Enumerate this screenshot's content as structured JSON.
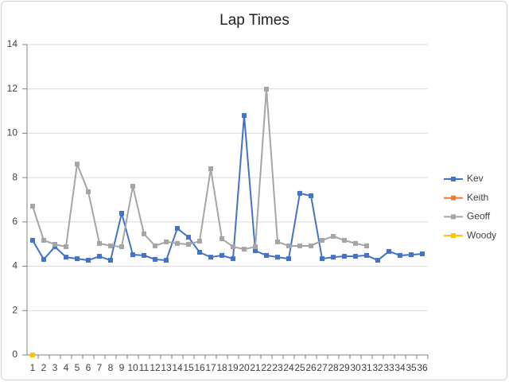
{
  "chart_data": {
    "type": "line",
    "title": "Lap Times",
    "categories": [
      "1",
      "2",
      "3",
      "4",
      "5",
      "6",
      "7",
      "8",
      "9",
      "10",
      "11",
      "12",
      "13",
      "14",
      "15",
      "16",
      "17",
      "18",
      "19",
      "20",
      "21",
      "22",
      "23",
      "24",
      "25",
      "26",
      "27",
      "28",
      "29",
      "30",
      "31",
      "32",
      "33",
      "34",
      "35",
      "36"
    ],
    "series": [
      {
        "name": "Kev",
        "color": "#4472c4",
        "values": [
          5.17,
          4.31,
          4.88,
          4.41,
          4.34,
          4.27,
          4.45,
          4.27,
          6.39,
          4.52,
          4.49,
          4.31,
          4.27,
          5.71,
          5.31,
          4.63,
          4.41,
          4.49,
          4.34,
          10.8,
          4.7,
          4.49,
          4.41,
          4.34,
          7.29,
          7.18,
          4.34,
          4.41,
          4.45,
          4.45,
          4.49,
          4.27,
          4.67,
          4.49,
          4.52,
          4.56
        ]
      },
      {
        "name": "Keith",
        "color": "#ed7d31",
        "values": [
          null,
          null,
          null,
          null,
          null,
          null,
          null,
          null,
          null,
          null,
          null,
          null,
          null,
          null,
          null,
          null,
          null,
          null,
          null,
          null,
          null,
          null,
          null,
          null,
          null,
          null,
          null,
          null,
          null,
          null,
          null,
          null,
          null,
          null,
          null,
          null
        ]
      },
      {
        "name": "Geoff",
        "color": "#a5a5a5",
        "values": [
          6.71,
          5.17,
          4.99,
          4.88,
          8.61,
          7.36,
          5.03,
          4.92,
          4.88,
          7.61,
          5.46,
          4.92,
          5.1,
          5.03,
          4.99,
          5.13,
          8.4,
          5.24,
          4.88,
          4.77,
          4.88,
          11.99,
          5.1,
          4.92,
          4.92,
          4.92,
          5.17,
          5.35,
          5.17,
          5.03,
          4.92,
          null,
          null,
          null,
          null,
          null
        ]
      },
      {
        "name": "Woody",
        "color": "#ffc000",
        "values": [
          0,
          null,
          null,
          null,
          null,
          null,
          null,
          null,
          null,
          null,
          null,
          null,
          null,
          null,
          null,
          null,
          null,
          null,
          null,
          null,
          null,
          null,
          null,
          null,
          null,
          null,
          null,
          null,
          null,
          null,
          null,
          null,
          null,
          null,
          null,
          null
        ]
      }
    ],
    "ylim": [
      0,
      14
    ],
    "yticks": [
      0,
      2,
      4,
      6,
      8,
      10,
      12,
      14
    ],
    "grid": true,
    "legend": "right"
  }
}
